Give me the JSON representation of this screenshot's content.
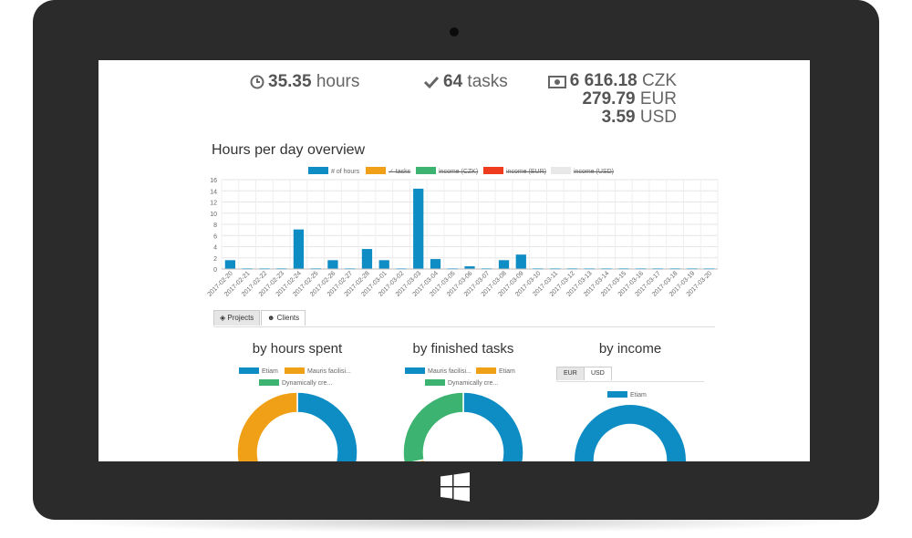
{
  "colors": {
    "blue": "#0e8cc4",
    "orange": "#f0a016",
    "green": "#3cb371",
    "red": "#f03c1e",
    "light": "#e8e8e8",
    "device": "#2b2b2b"
  },
  "stats": {
    "hours_value": "35.35",
    "hours_label": "hours",
    "tasks_value": "64",
    "tasks_label": "tasks",
    "czk_value": "6 616.18",
    "czk_label": "CZK",
    "eur_value": "279.79",
    "eur_label": "EUR",
    "usd_value": "3.59",
    "usd_label": "USD",
    "icons": {
      "hours": "clock-icon",
      "tasks": "check-icon",
      "money": "money-icon"
    }
  },
  "overview": {
    "title": "Hours per day overview",
    "legend": [
      {
        "label": "# of hours",
        "color": "#0e8cc4",
        "hidden": false
      },
      {
        "label": "✓ tasks",
        "color": "#f0a016",
        "hidden": true
      },
      {
        "label": "income (CZK)",
        "color": "#3cb371",
        "hidden": true
      },
      {
        "label": "income (EUR)",
        "color": "#f03c1e",
        "hidden": true
      },
      {
        "label": "income (USD)",
        "color": "#e8e8e8",
        "hidden": true
      }
    ]
  },
  "chart_data": {
    "type": "bar",
    "categories": [
      "2017-02-20",
      "2017-02-21",
      "2017-02-22",
      "2017-02-23",
      "2017-02-24",
      "2017-02-25",
      "2017-02-26",
      "2017-02-27",
      "2017-02-28",
      "2017-03-01",
      "2017-03-02",
      "2017-03-03",
      "2017-03-04",
      "2017-03-05",
      "2017-03-06",
      "2017-03-07",
      "2017-03-08",
      "2017-03-09",
      "2017-03-10",
      "2017-03-11",
      "2017-03-12",
      "2017-03-13",
      "2017-03-14",
      "2017-03-15",
      "2017-03-16",
      "2017-03-17",
      "2017-03-18",
      "2017-03-19",
      "2017-03-20"
    ],
    "series": [
      {
        "name": "# of hours",
        "values": [
          1.5,
          0,
          0,
          0,
          7,
          0,
          1.5,
          0,
          3.5,
          1.5,
          0,
          14.3,
          1.7,
          0,
          0.4,
          0,
          1.5,
          2.5,
          0,
          0,
          0,
          0,
          0,
          0,
          0,
          0,
          0,
          0,
          0
        ]
      }
    ],
    "ylim": [
      0,
      16
    ],
    "yticks": [
      0,
      2,
      4,
      6,
      8,
      10,
      12,
      14,
      16
    ],
    "grid": true,
    "legend_position": "top"
  },
  "tabs": {
    "projects": "Projects",
    "clients": "Clients",
    "icons": {
      "projects": "cubes-icon",
      "clients": "users-icon"
    }
  },
  "breakdowns": {
    "hours": {
      "title": "by hours spent",
      "legend": [
        {
          "label": "Etiam",
          "color": "#0e8cc4"
        },
        {
          "label": "Mauris facilisi...",
          "color": "#f0a016"
        },
        {
          "label": "Dynamically cre...",
          "color": "#3cb371"
        }
      ],
      "values": [
        70,
        30,
        0
      ]
    },
    "tasks": {
      "title": "by finished tasks",
      "legend": [
        {
          "label": "Mauris facilisi...",
          "color": "#0e8cc4"
        },
        {
          "label": "Etiam",
          "color": "#f0a016"
        },
        {
          "label": "Dynamically cre...",
          "color": "#3cb371"
        }
      ],
      "values": [
        58,
        14,
        28
      ]
    },
    "income": {
      "title": "by income",
      "currency_tabs": [
        "EUR",
        "USD"
      ],
      "legend": [
        {
          "label": "Etiam",
          "color": "#0e8cc4"
        }
      ],
      "values": [
        100
      ]
    }
  }
}
